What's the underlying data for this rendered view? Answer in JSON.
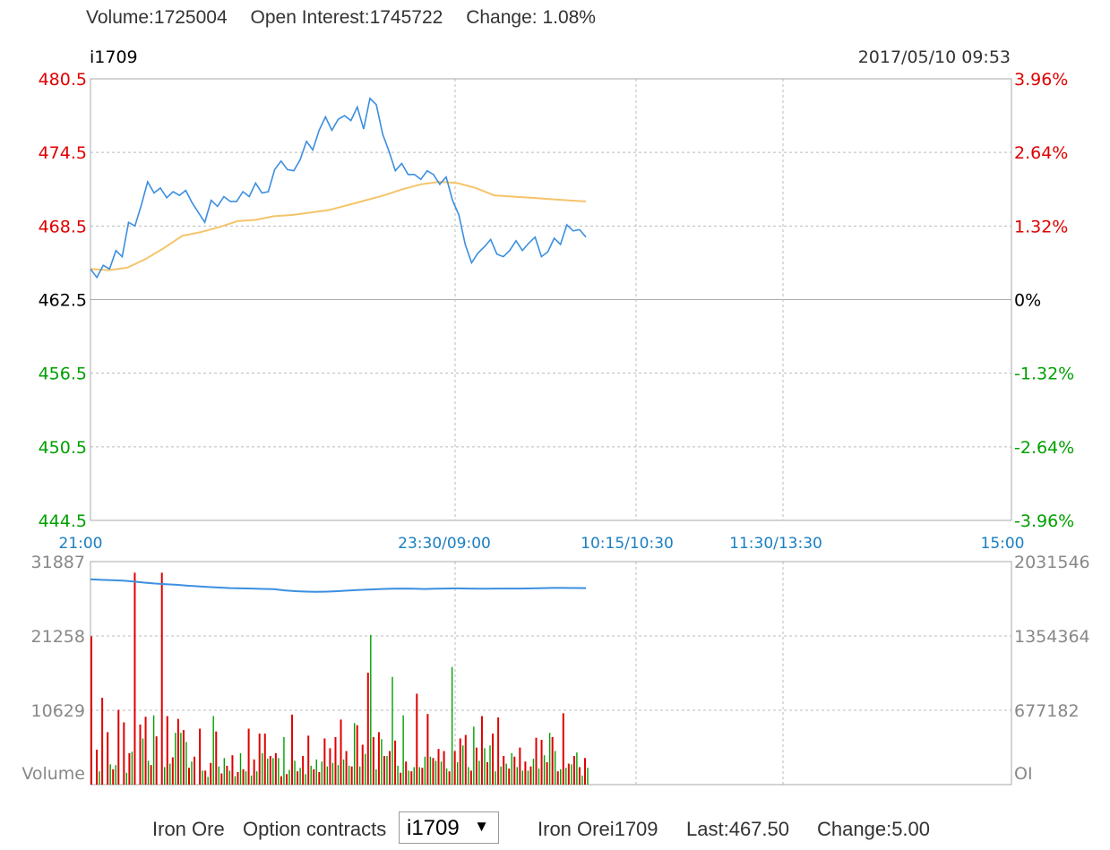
{
  "header": {
    "volume_label": "Volume:",
    "volume_value": "1725004",
    "oi_label": "Open Interest:",
    "oi_value": "1745722",
    "change_label": "Change:",
    "change_value": "1.08%"
  },
  "footer": {
    "product": "Iron Ore",
    "option_label": "Option contracts",
    "selected_contract": "i1709",
    "contract_name": "Iron Orei1709",
    "last_label": "Last:",
    "last_value": "467.50",
    "change_label": "Change:",
    "change_value": "5.00"
  },
  "colors": {
    "up": "#e00000",
    "down": "#00a000",
    "price": "#3b8fe0",
    "avg": "#f5c46a",
    "oi": "#3b8fe0",
    "axis_time": "#1a7fc1",
    "neutral": "#000000"
  },
  "chart_data": [
    {
      "type": "line",
      "symbol": "i1709",
      "datetime": "2017/05/10 09:53",
      "ylim": [
        444.5,
        480.5
      ],
      "yticks": [
        "480.5",
        "474.5",
        "468.5",
        "462.5",
        "456.5",
        "450.5",
        "444.5"
      ],
      "pct_ticks": [
        "3.96%",
        "2.64%",
        "1.32%",
        "0%",
        "-1.32%",
        "-2.64%",
        "-3.96%"
      ],
      "xticks": [
        "21:00",
        "23:30/09:00",
        "10:15/10:30",
        "11:30/13:30",
        "15:00"
      ],
      "series": [
        {
          "values": [
            465.0,
            464.3,
            465.3,
            465.0,
            466.5,
            466.0,
            468.8,
            468.5,
            470.2,
            472.1,
            471.2,
            471.6,
            470.8,
            471.3,
            471.0,
            471.4,
            470.4,
            469.6,
            468.8,
            470.6,
            470.1,
            470.9,
            470.5,
            470.5,
            471.3,
            470.9,
            472.0,
            471.2,
            471.3,
            473.1,
            473.8,
            473.1,
            473.0,
            473.9,
            475.4,
            474.7,
            476.3,
            477.4,
            476.3,
            477.2,
            477.5,
            477.1,
            478.2,
            476.4,
            478.9,
            478.4,
            476.0,
            474.6,
            473.0,
            473.6,
            472.7,
            472.7,
            472.3,
            473.0,
            472.7,
            471.9,
            472.5,
            470.6,
            469.4,
            467.0,
            465.5,
            466.3,
            466.8,
            467.4,
            466.2,
            466.0,
            466.5,
            467.3,
            466.5,
            467.1,
            467.6,
            466.0,
            466.4,
            467.5,
            467.0,
            468.6,
            468.1,
            468.2,
            467.6
          ]
        },
        {
          "values": [
            465.0,
            464.9,
            465.1,
            465.8,
            466.7,
            467.7,
            468.0,
            468.4,
            468.9,
            469.0,
            469.3,
            469.4,
            469.6,
            469.8,
            470.2,
            470.6,
            471.0,
            471.5,
            471.9,
            472.1,
            472.0,
            471.6,
            471.0,
            470.9,
            470.8,
            470.7,
            470.6,
            470.5
          ]
        }
      ]
    },
    {
      "type": "bar",
      "ylim": [
        0,
        31887
      ],
      "yticks": [
        "31887",
        "21258",
        "10629",
        "Volume"
      ],
      "right_ticks": [
        "2031546",
        "1354364",
        "677182",
        "OI"
      ],
      "xticks": [
        "21:00",
        "23:30/09:00",
        "10:15/10:30",
        "11:30/13:30",
        "15:00"
      ],
      "series": [
        {
          "values": [
            21200,
            5000,
            12400,
            7500,
            2200,
            10700,
            8900,
            4500,
            30300,
            8600,
            9700,
            2800,
            6900,
            30300,
            9800,
            3900,
            9400,
            7800,
            2400,
            4000,
            8000,
            2000,
            3100,
            7600,
            1600,
            2700,
            4200,
            1800,
            2200,
            8000,
            3600,
            7300,
            7300,
            4100,
            4500,
            1200,
            1500,
            10000,
            1900,
            4100,
            7000,
            2200,
            1800,
            6600,
            5200,
            6800,
            9300,
            4800,
            2600,
            8500,
            5700,
            16000,
            6800,
            7500,
            4100,
            4800,
            6300,
            1700,
            3300,
            1900,
            13000,
            2400,
            10100,
            3800,
            5100,
            4800,
            1900,
            4800,
            6600,
            7100,
            2000,
            5300,
            9800,
            3200,
            7300,
            9600,
            4100,
            2300,
            4000,
            5300,
            3300,
            2600,
            6700,
            6400,
            3200,
            6800,
            1900,
            10200,
            3000,
            4100,
            2500,
            3800
          ]
        },
        {
          "values": [
            0,
            1900,
            0,
            2900,
            2800,
            0,
            1700,
            4700,
            0,
            6600,
            3400,
            9900,
            0,
            2500,
            3000,
            7400,
            7400,
            6100,
            3300,
            0,
            2000,
            1100,
            9800,
            2600,
            3800,
            2000,
            1200,
            4500,
            1900,
            1300,
            1900,
            4500,
            3700,
            3800,
            3800,
            6800,
            2100,
            3400,
            2400,
            1500,
            2700,
            3600,
            3300,
            2600,
            3100,
            2800,
            3600,
            2700,
            8800,
            2600,
            4400,
            21400,
            2200,
            6500,
            4100,
            15400,
            2700,
            9900,
            2000,
            2500,
            2500,
            4000,
            4000,
            3400,
            3300,
            2300,
            16800,
            3200,
            5600,
            2500,
            8300,
            3400,
            5200,
            5600,
            1900,
            2600,
            3000,
            4500,
            2500,
            2000,
            2000,
            3700,
            2300,
            4200,
            7400,
            4800,
            2200,
            2400,
            2900,
            4600,
            1300,
            2400
          ]
        },
        {
          "values": [
            1870000,
            1865000,
            1862000,
            1858000,
            1850000,
            1840000,
            1832000,
            1826000,
            1820000,
            1812000,
            1806000,
            1800000,
            1795000,
            1790000,
            1788000,
            1786000,
            1783000,
            1780000,
            1770000,
            1762000,
            1758000,
            1756000,
            1758000,
            1762000,
            1768000,
            1774000,
            1778000,
            1782000,
            1784000,
            1786000,
            1784000,
            1782000,
            1784000,
            1786000,
            1788000,
            1786000,
            1784000,
            1785000,
            1786000,
            1786000,
            1786000,
            1788000,
            1790000,
            1792000,
            1792000,
            1791000,
            1790000
          ]
        }
      ]
    }
  ]
}
